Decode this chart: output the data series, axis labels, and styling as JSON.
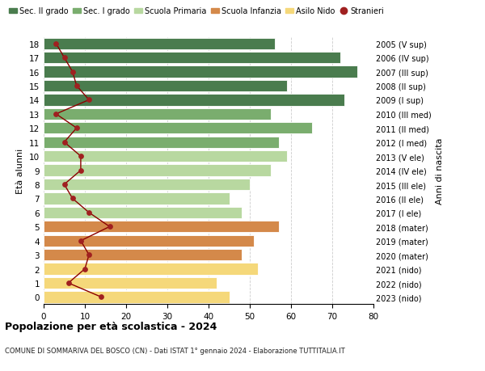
{
  "ages": [
    18,
    17,
    16,
    15,
    14,
    13,
    12,
    11,
    10,
    9,
    8,
    7,
    6,
    5,
    4,
    3,
    2,
    1,
    0
  ],
  "right_labels": [
    "2005 (V sup)",
    "2006 (IV sup)",
    "2007 (III sup)",
    "2008 (II sup)",
    "2009 (I sup)",
    "2010 (III med)",
    "2011 (II med)",
    "2012 (I med)",
    "2013 (V ele)",
    "2014 (IV ele)",
    "2015 (III ele)",
    "2016 (II ele)",
    "2017 (I ele)",
    "2018 (mater)",
    "2019 (mater)",
    "2020 (mater)",
    "2021 (nido)",
    "2022 (nido)",
    "2023 (nido)"
  ],
  "bar_values": [
    56,
    72,
    76,
    59,
    73,
    55,
    65,
    57,
    59,
    55,
    50,
    45,
    48,
    57,
    51,
    48,
    52,
    42,
    45
  ],
  "bar_colors": [
    "#4a7c4e",
    "#4a7c4e",
    "#4a7c4e",
    "#4a7c4e",
    "#4a7c4e",
    "#7aad6e",
    "#7aad6e",
    "#7aad6e",
    "#b8d8a0",
    "#b8d8a0",
    "#b8d8a0",
    "#b8d8a0",
    "#b8d8a0",
    "#d4894a",
    "#d4894a",
    "#d4894a",
    "#f5d87a",
    "#f5d87a",
    "#f5d87a"
  ],
  "stranieri_values": [
    3,
    5,
    7,
    8,
    11,
    3,
    8,
    5,
    9,
    9,
    5,
    7,
    11,
    16,
    9,
    11,
    10,
    6,
    14
  ],
  "legend_labels": [
    "Sec. II grado",
    "Sec. I grado",
    "Scuola Primaria",
    "Scuola Infanzia",
    "Asilo Nido",
    "Stranieri"
  ],
  "legend_colors": [
    "#4a7c4e",
    "#7aad6e",
    "#b8d8a0",
    "#d4894a",
    "#f5d87a",
    "#a02020"
  ],
  "ylabel_left": "Età alunni",
  "ylabel_right": "Anni di nascita",
  "title": "Popolazione per età scolastica - 2024",
  "subtitle": "COMUNE DI SOMMARIVA DEL BOSCO (CN) - Dati ISTAT 1° gennaio 2024 - Elaborazione TUTTITALIA.IT",
  "xlim": [
    0,
    80
  ],
  "xticks": [
    0,
    10,
    20,
    30,
    40,
    50,
    60,
    70,
    80
  ],
  "grid_color": "#cccccc",
  "stranieri_line_color": "#8b0000",
  "stranieri_dot_color": "#a02020"
}
